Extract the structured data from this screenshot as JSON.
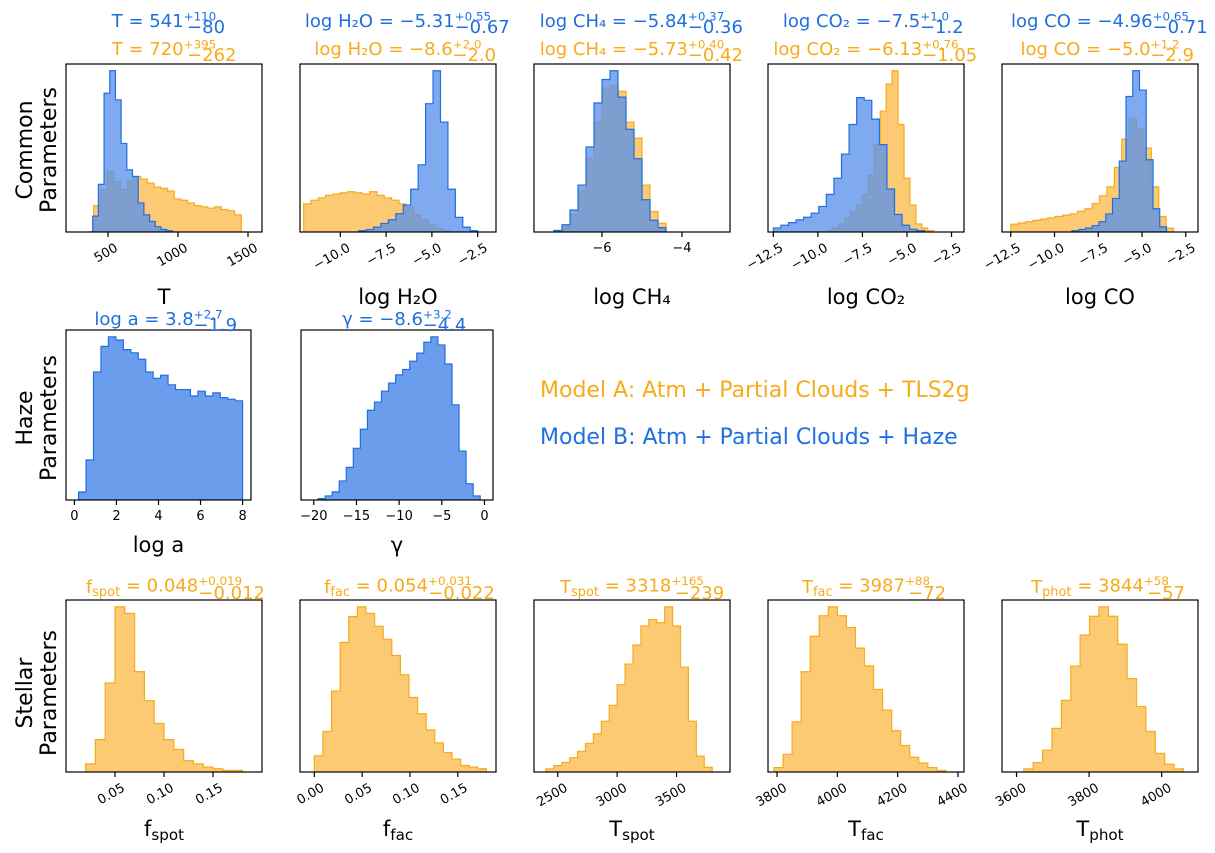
{
  "colors": {
    "A": "#f7ab1b",
    "B": "#1f6fe0",
    "A_fill": "#fbc463",
    "B_fill": "#5b92eb",
    "overlap_fill": "#5c78a6"
  },
  "row_labels": {
    "common": [
      "Common",
      "Parameters"
    ],
    "haze": [
      "Haze",
      "Parameters"
    ],
    "stellar": [
      "Stellar",
      "Parameters"
    ]
  },
  "legend": {
    "model_a": "Model A: Atm + Partial Clouds + TLS2g",
    "model_b": "Model B: Atm + Partial Clouds + Haze"
  },
  "chart_data": [
    {
      "id": "T",
      "row": "common",
      "col": 0,
      "type": "histogram",
      "xlabel": "T",
      "xlim": [
        200,
        1600
      ],
      "ticks": [
        500,
        1000,
        1500
      ],
      "ticklabels": [
        "500",
        "1000",
        "1500"
      ],
      "tick_rotation": -30,
      "title_b": {
        "pre": "T = 541",
        "sup": "+110",
        "sub": "−80"
      },
      "title_a": {
        "pre": "T = 720",
        "sup": "+395",
        "sub": "−262"
      },
      "series": [
        {
          "model": "A",
          "bins": [
            350,
            1500
          ],
          "values": [
            0,
            2,
            3.2,
            4.6,
            3.8,
            3.2,
            3.9,
            4.2,
            4.0,
            3.7,
            3.4,
            3.3,
            3.1,
            2.5,
            2.4,
            2.2,
            2.0,
            1.9,
            1.8,
            1.9,
            1.7,
            1.6,
            1.3,
            0
          ]
        },
        {
          "model": "B",
          "bins": [
            350,
            1000
          ],
          "values": [
            0,
            1.2,
            3.6,
            10.5,
            12.2,
            10.0,
            6.7,
            4.7,
            4.2,
            2.2,
            1.3,
            0.8,
            0.4,
            0.2,
            0.1,
            0
          ]
        }
      ]
    },
    {
      "id": "logH2O",
      "row": "common",
      "col": 1,
      "type": "histogram",
      "xlabel": "log H₂O",
      "xlim": [
        -12.2,
        -1.5
      ],
      "ticks": [
        -10,
        -7.5,
        -5,
        -2.5
      ],
      "ticklabels": [
        "−10.0",
        "−7.5",
        "−5.0",
        "−2.5"
      ],
      "tick_rotation": -30,
      "title_b": {
        "pre": "log H₂O = −5.31",
        "sup": "+0.55",
        "sub": "−0.67"
      },
      "title_a": {
        "pre": "log H₂O = −8.6",
        "sup": "+2.0",
        "sub": "−2.0"
      },
      "series": [
        {
          "model": "A",
          "bins": [
            -12,
            -4
          ],
          "values": [
            2.3,
            2.6,
            2.8,
            3.0,
            3.1,
            3.2,
            3.3,
            3.2,
            3.1,
            3.3,
            3.0,
            2.8,
            2.6,
            2.3,
            2.0,
            1.4,
            1.0,
            0.6,
            0.3,
            0.1
          ]
        },
        {
          "model": "B",
          "bins": [
            -9,
            -2.5
          ],
          "values": [
            0.1,
            0.2,
            0.4,
            0.7,
            1.0,
            1.5,
            2.2,
            3.5,
            5.5,
            10.5,
            13.2,
            9.0,
            3.5,
            1.2,
            0.4,
            0.1
          ]
        }
      ]
    },
    {
      "id": "logCH4",
      "row": "common",
      "col": 2,
      "type": "histogram",
      "xlabel": "log CH₄",
      "xlim": [
        -7.7,
        -2.8
      ],
      "ticks": [
        -6,
        -4
      ],
      "ticklabels": [
        "−6",
        "−4"
      ],
      "tick_rotation": 0,
      "title_b": {
        "pre": "log CH₄ = −5.84",
        "sup": "+0.37",
        "sub": "−0.36"
      },
      "title_a": {
        "pre": "log CH₄ = −5.73",
        "sup": "+0.40",
        "sub": "−0.42"
      },
      "series": [
        {
          "model": "A",
          "bins": [
            -7.2,
            -4.4
          ],
          "values": [
            0.1,
            0.4,
            1.2,
            2.8,
            5.0,
            7.5,
            9.8,
            10.0,
            9.6,
            7.5,
            6.4,
            3.2,
            1.4,
            0.6
          ]
        },
        {
          "model": "B",
          "bins": [
            -7.2,
            -4.4
          ],
          "values": [
            0.1,
            0.5,
            1.5,
            3.2,
            5.8,
            8.8,
            10.4,
            11.0,
            9.2,
            7.0,
            5.0,
            2.2,
            0.8,
            0.3
          ]
        }
      ]
    },
    {
      "id": "logCO2",
      "row": "common",
      "col": 3,
      "type": "histogram",
      "xlabel": "log CO₂",
      "xlim": [
        -12.8,
        -1.8
      ],
      "ticks": [
        -12.5,
        -10,
        -7.5,
        -5,
        -2.5
      ],
      "ticklabels": [
        "−12.5",
        "−10.0",
        "−7.5",
        "−5.0",
        "−2.5"
      ],
      "tick_rotation": -30,
      "title_b": {
        "pre": "log CO₂ = −7.5",
        "sup": "+1.0",
        "sub": "−1.2"
      },
      "title_a": {
        "pre": "log CO₂ = −6.13",
        "sup": "+0.76",
        "sub": "−1.05"
      },
      "series": [
        {
          "model": "A",
          "bins": [
            -9.5,
            -3.5
          ],
          "values": [
            0.1,
            0.3,
            0.6,
            1.0,
            1.5,
            2.0,
            2.8,
            4.2,
            6.5,
            9.0,
            11.0,
            12.0,
            8.0,
            4.0,
            2.0,
            0.6,
            0.3,
            0.1
          ]
        },
        {
          "model": "B",
          "bins": [
            -12.5,
            -4
          ],
          "values": [
            0.3,
            0.5,
            0.7,
            0.9,
            1.1,
            1.4,
            1.9,
            2.8,
            4.0,
            5.8,
            8.0,
            10.0,
            9.8,
            8.4,
            6.5,
            3.2,
            1.3,
            0.5,
            0.2,
            0.1
          ]
        }
      ]
    },
    {
      "id": "logCO",
      "row": "common",
      "col": 4,
      "type": "histogram",
      "xlabel": "log CO",
      "xlim": [
        -13.0,
        -1.8
      ],
      "ticks": [
        -12.5,
        -10,
        -7.5,
        -5,
        -2.5
      ],
      "ticklabels": [
        "−12.5",
        "−10.0",
        "−7.5",
        "−5.0",
        "−2.5"
      ],
      "tick_rotation": -30,
      "title_b": {
        "pre": "log CO = −4.96",
        "sup": "+0.65",
        "sub": "−0.71"
      },
      "title_a": {
        "pre": "log CO = −5.0",
        "sup": "+1.2",
        "sub": "−2.9"
      },
      "series": [
        {
          "model": "A",
          "bins": [
            -12.5,
            -3.2
          ],
          "values": [
            0.6,
            0.7,
            0.8,
            0.9,
            1.0,
            1.1,
            1.2,
            1.3,
            1.4,
            1.6,
            1.8,
            2.2,
            2.8,
            3.5,
            5.0,
            7.2,
            8.8,
            8.0,
            6.5,
            3.5,
            1.2,
            0.3
          ]
        },
        {
          "model": "B",
          "bins": [
            -9,
            -3.6
          ],
          "values": [
            0.1,
            0.2,
            0.3,
            0.5,
            0.8,
            1.4,
            2.6,
            5.5,
            10.5,
            12.5,
            11.0,
            5.6,
            1.8,
            0.4
          ]
        }
      ]
    },
    {
      "id": "loga",
      "row": "haze",
      "col": 0,
      "type": "histogram",
      "xlabel": "log a",
      "xlim": [
        -0.4,
        8.4
      ],
      "ticks": [
        0,
        2,
        4,
        6,
        8
      ],
      "ticklabels": [
        "0",
        "2",
        "4",
        "6",
        "8"
      ],
      "tick_rotation": 0,
      "title_b": {
        "pre": "log a = 3.8",
        "sup": "+2.7",
        "sub": "−1.9"
      },
      "series": [
        {
          "model": "B",
          "bins": [
            0.2,
            8
          ],
          "values": [
            0.5,
            2.5,
            8.0,
            9.6,
            10.2,
            10.0,
            9.4,
            9.2,
            8.8,
            8.0,
            7.6,
            7.8,
            7.2,
            6.9,
            6.9,
            6.5,
            6.8,
            6.5,
            6.7,
            6.4,
            6.3,
            6.2
          ]
        }
      ]
    },
    {
      "id": "gamma",
      "row": "haze",
      "col": 1,
      "type": "histogram",
      "xlabel": "γ",
      "xlim": [
        -21.5,
        1.0
      ],
      "ticks": [
        -20,
        -15,
        -10,
        -5,
        0
      ],
      "ticklabels": [
        "−20",
        "−15",
        "−10",
        "−5",
        "0"
      ],
      "tick_rotation": 0,
      "title_b": {
        "pre": "γ = −8.6",
        "sup": "+3.2",
        "sub": "−4.4"
      },
      "series": [
        {
          "model": "B",
          "bins": [
            -19.5,
            -0.5
          ],
          "values": [
            0.1,
            0.3,
            0.6,
            1.4,
            2.4,
            3.8,
            5.2,
            6.6,
            7.2,
            8.0,
            8.6,
            9.2,
            9.6,
            10.2,
            10.8,
            11.6,
            12.0,
            11.4,
            10.0,
            7.0,
            3.6,
            1.2,
            0.3
          ]
        }
      ]
    },
    {
      "id": "fspot",
      "row": "stellar",
      "col": 0,
      "type": "histogram",
      "xlabel": "f_spot",
      "xlim": [
        0.0,
        0.2
      ],
      "ticks": [
        0.05,
        0.1,
        0.15
      ],
      "ticklabels": [
        "0.05",
        "0.10",
        "0.15"
      ],
      "tick_rotation": -30,
      "title_a": {
        "pre": "f_spot = 0.048",
        "sup": "+0.019",
        "sub": "−0.012"
      },
      "series": [
        {
          "model": "A",
          "bins": [
            0.02,
            0.18
          ],
          "values": [
            0.5,
            2.0,
            5.5,
            10.2,
            9.8,
            6.2,
            4.4,
            3.0,
            2.0,
            1.4,
            0.7,
            0.5,
            0.3,
            0.2,
            0.1,
            0.1
          ]
        }
      ]
    },
    {
      "id": "ffac",
      "row": "stellar",
      "col": 1,
      "type": "histogram",
      "xlabel": "f_fac",
      "xlim": [
        -0.015,
        0.19
      ],
      "ticks": [
        0.0,
        0.05,
        0.1,
        0.15
      ],
      "ticklabels": [
        "0.00",
        "0.05",
        "0.10",
        "0.15"
      ],
      "tick_rotation": -30,
      "title_a": {
        "pre": "f_fac = 0.054",
        "sup": "+0.031",
        "sub": "−0.022"
      },
      "series": [
        {
          "model": "A",
          "bins": [
            0.0,
            0.18
          ],
          "values": [
            1.0,
            2.5,
            5.0,
            8.0,
            9.6,
            10.2,
            9.8,
            9.0,
            8.2,
            7.2,
            6.0,
            4.6,
            3.6,
            2.6,
            1.8,
            1.2,
            0.8,
            0.4,
            0.3,
            0.2
          ]
        }
      ]
    },
    {
      "id": "Tspot",
      "row": "stellar",
      "col": 2,
      "type": "histogram",
      "xlabel": "T_spot",
      "xlim": [
        2300,
        3950
      ],
      "ticks": [
        2500,
        3000,
        3500
      ],
      "ticklabels": [
        "2500",
        "3000",
        "3500"
      ],
      "tick_rotation": -30,
      "title_a": {
        "pre": "T_spot = 3318",
        "sup": "+165",
        "sub": "−239"
      },
      "series": [
        {
          "model": "A",
          "bins": [
            2400,
            3800
          ],
          "values": [
            0.2,
            0.4,
            0.6,
            0.9,
            1.3,
            1.8,
            2.4,
            3.2,
            4.2,
            5.5,
            6.8,
            8.0,
            9.2,
            9.6,
            9.4,
            10.4,
            9.2,
            6.6,
            3.2,
            1.0,
            0.3
          ]
        }
      ]
    },
    {
      "id": "Tfac",
      "row": "stellar",
      "col": 3,
      "type": "histogram",
      "xlabel": "T_fac",
      "xlim": [
        3770,
        4420
      ],
      "ticks": [
        3800,
        4000,
        4200,
        4400
      ],
      "ticklabels": [
        "3800",
        "4000",
        "4200",
        "4400"
      ],
      "tick_rotation": -30,
      "title_a": {
        "pre": "T_fac = 3987",
        "sup": "+88",
        "sub": "−72"
      },
      "series": [
        {
          "model": "A",
          "bins": [
            3790,
            4360
          ],
          "values": [
            0.3,
            1.2,
            3.4,
            6.8,
            9.2,
            10.6,
            11.2,
            10.6,
            9.8,
            8.4,
            7.2,
            5.6,
            4.2,
            2.8,
            1.8,
            1.0,
            0.6,
            0.3,
            0.1
          ]
        }
      ]
    },
    {
      "id": "Tphot",
      "row": "stellar",
      "col": 4,
      "type": "histogram",
      "xlabel": "T_phot",
      "xlim": [
        3560,
        4100
      ],
      "ticks": [
        3600,
        3800,
        4000
      ],
      "ticklabels": [
        "3600",
        "3800",
        "4000"
      ],
      "tick_rotation": -30,
      "title_a": {
        "pre": "T_phot = 3844",
        "sup": "+58",
        "sub": "−57"
      },
      "series": [
        {
          "model": "A",
          "bins": [
            3620,
            4060
          ],
          "values": [
            0.2,
            0.6,
            1.4,
            2.8,
            4.6,
            6.8,
            8.8,
            10.0,
            10.6,
            10.0,
            8.2,
            6.0,
            4.2,
            2.6,
            1.2,
            0.5,
            0.2
          ]
        }
      ]
    }
  ]
}
